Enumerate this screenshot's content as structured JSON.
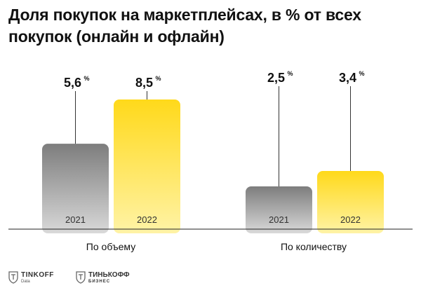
{
  "title": "Доля покупок на маркетплейсах, в % от всех покупок (онлайн и офлайн)",
  "chart_data": {
    "type": "bar",
    "title": "Доля покупок на маркетплейсах, в % от всех покупок (онлайн и офлайн)",
    "groups": [
      "По объему",
      "По количеству"
    ],
    "series": [
      {
        "name": "2021",
        "values": [
          5.6,
          2.5
        ],
        "labels": [
          "5,6",
          "2,5"
        ],
        "color": "#8a8a8a"
      },
      {
        "name": "2022",
        "values": [
          8.5,
          3.4
        ],
        "labels": [
          "8,5",
          "3,4"
        ],
        "color": "#ffdd2d"
      }
    ],
    "unit": "%",
    "xlabel": "",
    "ylabel": "",
    "grid": false
  },
  "logos": [
    {
      "name": "TINKOFF",
      "sub": "Data"
    },
    {
      "name": "ТИНЬКОФФ",
      "sub": "БИЗНЕС"
    }
  ]
}
